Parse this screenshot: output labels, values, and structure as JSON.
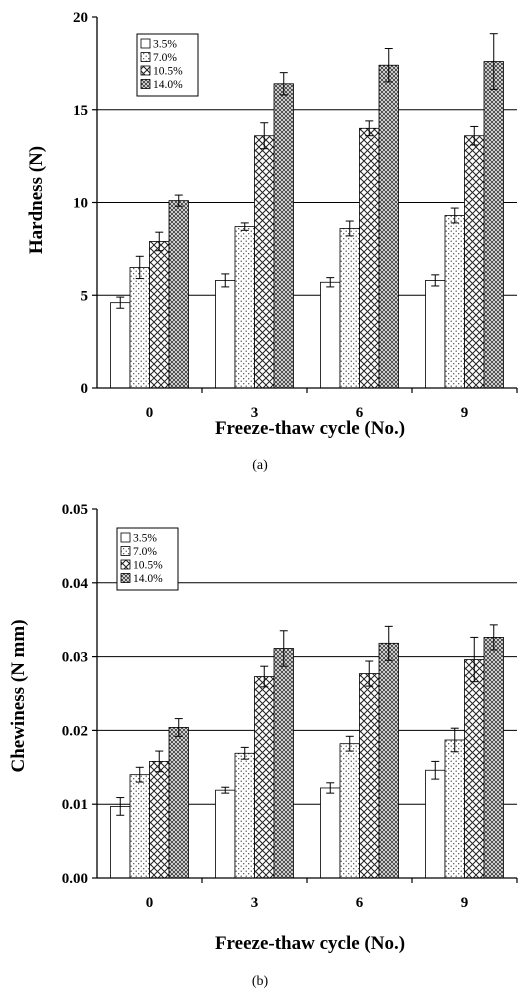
{
  "colors": {
    "axis": "#000000",
    "grid": "#000000",
    "bar_stroke": "#000000",
    "background": "#ffffff"
  },
  "chart_data": [
    {
      "type": "bar",
      "panel_caption": "(a)",
      "xlabel": "Freeze-thaw cycle (No.)",
      "ylabel": "Hardness (N)",
      "categories": [
        "0",
        "3",
        "6",
        "9"
      ],
      "ylim": [
        0,
        20
      ],
      "yticks": [
        0,
        5,
        10,
        15,
        20
      ],
      "ytick_labels": [
        "0",
        "5",
        "10",
        "15",
        "20"
      ],
      "grid": true,
      "legend_position": "top-left",
      "series": [
        {
          "name": "3.5%",
          "pattern": "plain",
          "values": [
            4.6,
            5.8,
            5.7,
            5.8
          ],
          "errors": [
            0.3,
            0.35,
            0.25,
            0.3
          ]
        },
        {
          "name": "7.0%",
          "pattern": "dots",
          "values": [
            6.5,
            8.7,
            8.6,
            9.3
          ],
          "errors": [
            0.6,
            0.2,
            0.4,
            0.4
          ]
        },
        {
          "name": "10.5%",
          "pattern": "crosshatch",
          "values": [
            7.9,
            13.6,
            14.0,
            13.6
          ],
          "errors": [
            0.5,
            0.7,
            0.4,
            0.5
          ]
        },
        {
          "name": "14.0%",
          "pattern": "dense",
          "values": [
            10.1,
            16.4,
            17.4,
            17.6
          ],
          "errors": [
            0.3,
            0.6,
            0.9,
            1.5
          ]
        }
      ]
    },
    {
      "type": "bar",
      "panel_caption": "(b)",
      "xlabel": "Freeze-thaw cycle (No.)",
      "ylabel": "Chewiness  (N mm)",
      "categories": [
        "0",
        "3",
        "6",
        "9"
      ],
      "ylim": [
        0,
        0.05
      ],
      "yticks": [
        0,
        0.01,
        0.02,
        0.03,
        0.04,
        0.05
      ],
      "ytick_labels": [
        "0.00",
        "0.01",
        "0.02",
        "0.03",
        "0.04",
        "0.05"
      ],
      "grid": true,
      "legend_position": "top-left",
      "series": [
        {
          "name": "3.5%",
          "pattern": "plain",
          "values": [
            0.0097,
            0.0119,
            0.0122,
            0.0146
          ],
          "errors": [
            0.0012,
            0.0004,
            0.0007,
            0.0012
          ]
        },
        {
          "name": "7.0%",
          "pattern": "dots",
          "values": [
            0.014,
            0.0169,
            0.0182,
            0.0187
          ],
          "errors": [
            0.001,
            0.0008,
            0.001,
            0.0016
          ]
        },
        {
          "name": "10.5%",
          "pattern": "crosshatch",
          "values": [
            0.0158,
            0.0273,
            0.0277,
            0.0296
          ],
          "errors": [
            0.0014,
            0.0014,
            0.0017,
            0.003
          ]
        },
        {
          "name": "14.0%",
          "pattern": "dense",
          "values": [
            0.0204,
            0.0311,
            0.0318,
            0.0326
          ],
          "errors": [
            0.0012,
            0.0024,
            0.0023,
            0.0017
          ]
        }
      ]
    }
  ]
}
